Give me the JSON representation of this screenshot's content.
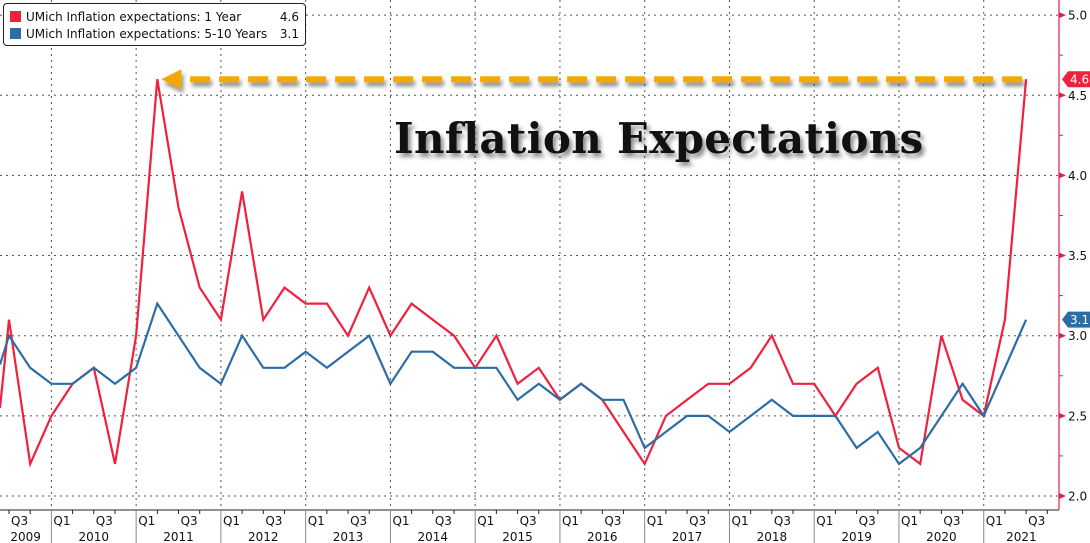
{
  "chart_data": {
    "type": "line",
    "title": "Inflation Expectations",
    "xlabel": "",
    "ylabel": "",
    "ylim": [
      2.0,
      5.0
    ],
    "yticks": [
      "2.0",
      "2.5",
      "3.0",
      "3.5",
      "4.0",
      "4.5",
      "5.0"
    ],
    "ytick_values": [
      2.0,
      2.5,
      3.0,
      3.5,
      4.0,
      4.5,
      5.0
    ],
    "grid": true,
    "legend_position": "top-left",
    "x": [
      "2009 Q3",
      "2009 Q4",
      "2010 Q1",
      "2010 Q2",
      "2010 Q3",
      "2010 Q4",
      "2011 Q1",
      "2011 Q2",
      "2011 Q3",
      "2011 Q4",
      "2012 Q1",
      "2012 Q2",
      "2012 Q3",
      "2012 Q4",
      "2013 Q1",
      "2013 Q2",
      "2013 Q3",
      "2013 Q4",
      "2014 Q1",
      "2014 Q2",
      "2014 Q3",
      "2014 Q4",
      "2015 Q1",
      "2015 Q2",
      "2015 Q3",
      "2015 Q4",
      "2016 Q1",
      "2016 Q2",
      "2016 Q3",
      "2016 Q4",
      "2017 Q1",
      "2017 Q2",
      "2017 Q3",
      "2017 Q4",
      "2018 Q1",
      "2018 Q2",
      "2018 Q3",
      "2018 Q4",
      "2019 Q1",
      "2019 Q2",
      "2019 Q3",
      "2019 Q4",
      "2020 Q1",
      "2020 Q2",
      "2020 Q3",
      "2020 Q4",
      "2021 Q1",
      "2021 Q2",
      "2021 Q3"
    ],
    "x_quarter_labels": [
      "Q3",
      "Q1",
      "Q3",
      "Q1",
      "Q3",
      "Q1",
      "Q3",
      "Q1",
      "Q3",
      "Q1",
      "Q3",
      "Q1",
      "Q3",
      "Q1",
      "Q3",
      "Q1",
      "Q3",
      "Q1",
      "Q3",
      "Q1",
      "Q3",
      "Q1",
      "Q3",
      "Q1",
      "Q3",
      "Q1",
      "Q3"
    ],
    "x_years": [
      "2009",
      "2010",
      "2011",
      "2012",
      "2013",
      "2014",
      "2015",
      "2016",
      "2017",
      "2018",
      "2019",
      "2020",
      "2021"
    ],
    "series": [
      {
        "name": "UMich Inflation expectations: 1 Year",
        "color": "#F0203E",
        "last_value": "4.6",
        "values": [
          3.1,
          2.2,
          2.5,
          2.7,
          2.8,
          2.2,
          3.0,
          4.6,
          3.8,
          3.3,
          3.1,
          3.9,
          3.1,
          3.3,
          3.2,
          3.2,
          3.0,
          3.3,
          3.0,
          3.2,
          3.1,
          3.0,
          2.8,
          3.0,
          2.7,
          2.8,
          2.6,
          2.7,
          2.6,
          2.4,
          2.2,
          2.5,
          2.6,
          2.7,
          2.7,
          2.8,
          3.0,
          2.7,
          2.7,
          2.5,
          2.7,
          2.8,
          2.3,
          2.2,
          3.0,
          2.6,
          2.5,
          3.1,
          4.6
        ]
      },
      {
        "name": "UMich Inflation expectations: 5-10 Years",
        "color": "#2E6DA4",
        "last_value": "3.1",
        "values": [
          3.0,
          2.8,
          2.7,
          2.7,
          2.8,
          2.7,
          2.8,
          3.2,
          3.0,
          2.8,
          2.7,
          3.0,
          2.8,
          2.8,
          2.9,
          2.8,
          2.9,
          3.0,
          2.7,
          2.9,
          2.9,
          2.8,
          2.8,
          2.8,
          2.6,
          2.7,
          2.6,
          2.7,
          2.6,
          2.6,
          2.3,
          2.4,
          2.5,
          2.5,
          2.4,
          2.5,
          2.6,
          2.5,
          2.5,
          2.5,
          2.3,
          2.4,
          2.2,
          2.3,
          2.5,
          2.7,
          2.5,
          2.8,
          3.1
        ]
      }
    ],
    "annotations": [
      {
        "type": "dashed-arrow",
        "color": "#F5A800",
        "from_value": 4.6,
        "from_x": "2021 Q3",
        "to_x": "2011 Q2",
        "meaning": "current 1-year expectation equals 2011 peak"
      }
    ]
  },
  "legend": {
    "items": [
      {
        "label": "UMich Inflation expectations: 1 Year",
        "value": "4.6",
        "color": "#F0203E"
      },
      {
        "label": "UMich Inflation expectations: 5-10 Years",
        "value": "3.1",
        "color": "#2E6DA4"
      }
    ]
  },
  "axis_color": "#E0204A"
}
